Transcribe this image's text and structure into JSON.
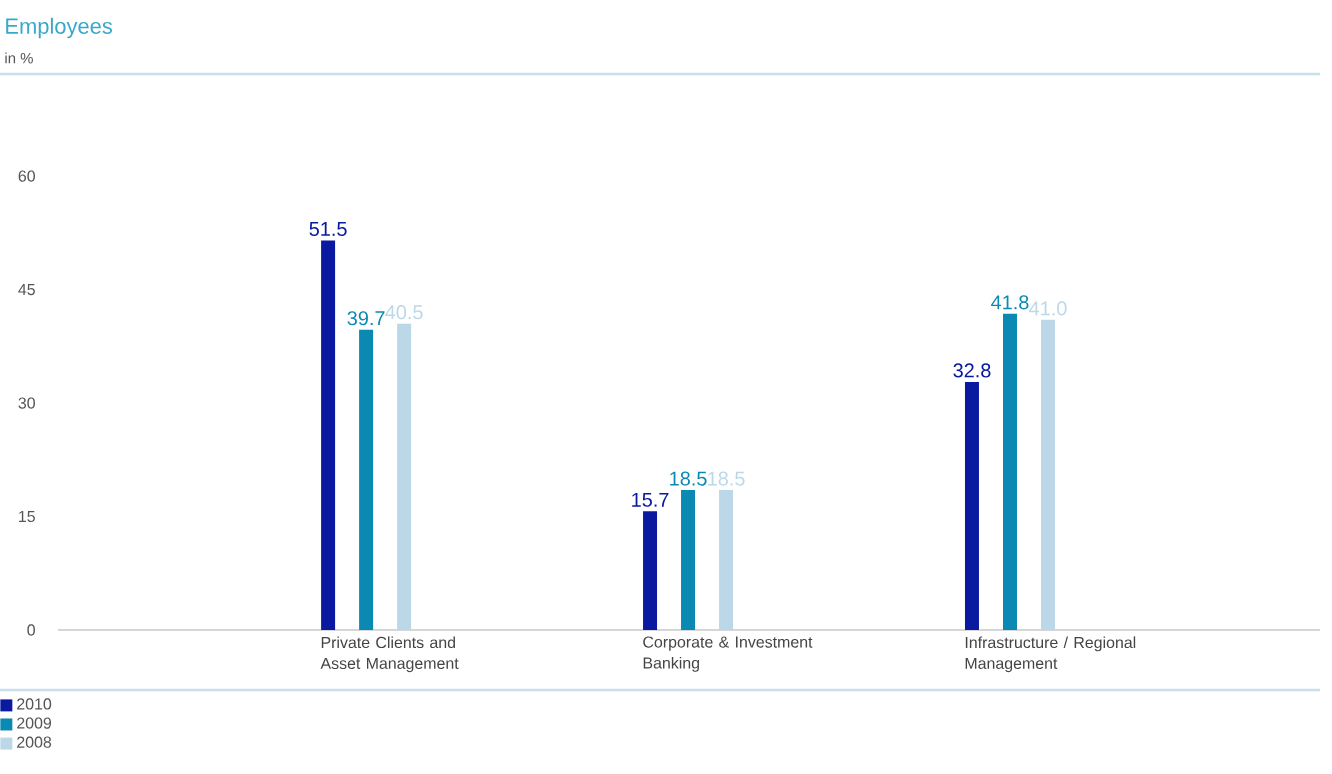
{
  "chart_data": {
    "type": "bar",
    "title": "Employees",
    "annotations": [
      "in %"
    ],
    "categories": [
      "Private Clients and Asset Management",
      "Corporate & Investment Banking",
      "Infrastructure / Regional Management"
    ],
    "series": [
      {
        "name": "2010",
        "color": "#0a1aa0",
        "values": [
          51.5,
          15.7,
          32.8
        ],
        "value_labels": [
          "51.5",
          "15.7",
          "32.8"
        ]
      },
      {
        "name": "2009",
        "color": "#0a8ab2",
        "values": [
          39.7,
          18.5,
          41.8
        ],
        "value_labels": [
          "39.7",
          "18.5",
          "41.8"
        ]
      },
      {
        "name": "2008",
        "color": "#bcd8e8",
        "values": [
          40.5,
          18.5,
          41.0
        ],
        "value_labels": [
          "40.5",
          "18.5",
          "41.0"
        ]
      }
    ],
    "ylim": [
      0,
      73.5
    ],
    "yticks": [
      0,
      15,
      30,
      45,
      60
    ],
    "legend": "bottom left"
  }
}
